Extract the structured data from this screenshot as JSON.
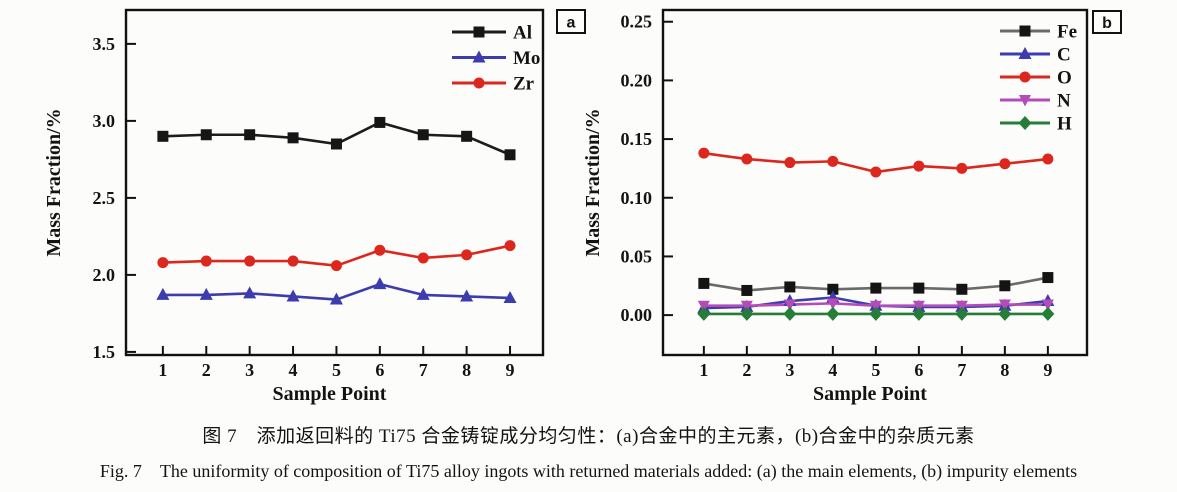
{
  "figure": {
    "caption_zh": "图 7　添加返回料的 Ti75 合金铸锭成分均匀性：(a)合金中的主元素，(b)合金中的杂质元素",
    "caption_en": "Fig. 7　The uniformity of composition of Ti75 alloy ingots with returned materials added: (a) the main elements, (b) impurity elements"
  },
  "chart_data": [
    {
      "type": "line",
      "panel_label": "a",
      "xlabel": "Sample Point",
      "ylabel": "Mass Fraction/%",
      "x": [
        1,
        2,
        3,
        4,
        5,
        6,
        7,
        8,
        9
      ],
      "xtick_labels": [
        "1",
        "2",
        "3",
        "4",
        "5",
        "6",
        "7",
        "8",
        "9"
      ],
      "ylim": [
        1.48,
        3.72
      ],
      "yticks": [
        1.5,
        2.0,
        2.5,
        3.0,
        3.5
      ],
      "ytick_labels": [
        "1.5",
        "2.0",
        "2.5",
        "3.0",
        "3.5"
      ],
      "grid": false,
      "legend_position": "top-right-inside",
      "series": [
        {
          "name": "Al",
          "marker": "square",
          "color": "#161616",
          "line_color": "#1c1c1c",
          "values": [
            2.9,
            2.91,
            2.91,
            2.89,
            2.85,
            2.99,
            2.91,
            2.9,
            2.78
          ]
        },
        {
          "name": "Mo",
          "marker": "triangle-up",
          "color": "#3c3cae",
          "line_color": "#3c3cae",
          "values": [
            1.87,
            1.87,
            1.88,
            1.86,
            1.84,
            1.94,
            1.87,
            1.86,
            1.85
          ]
        },
        {
          "name": "Zr",
          "marker": "circle",
          "color": "#dc271e",
          "line_color": "#dc271e",
          "values": [
            2.08,
            2.09,
            2.09,
            2.09,
            2.06,
            2.16,
            2.11,
            2.13,
            2.19
          ]
        }
      ]
    },
    {
      "type": "line",
      "panel_label": "b",
      "xlabel": "Sample Point",
      "ylabel": "Mass Fraction/%",
      "x": [
        1,
        2,
        3,
        4,
        5,
        6,
        7,
        8,
        9
      ],
      "xtick_labels": [
        "1",
        "2",
        "3",
        "4",
        "5",
        "6",
        "7",
        "8",
        "9"
      ],
      "ylim": [
        -0.034,
        0.26
      ],
      "yticks": [
        0.0,
        0.05,
        0.1,
        0.15,
        0.2,
        0.25
      ],
      "ytick_labels": [
        "0.00",
        "0.05",
        "0.10",
        "0.15",
        "0.20",
        "0.25"
      ],
      "grid": false,
      "legend_position": "top-right-inside",
      "series": [
        {
          "name": "Fe",
          "marker": "square",
          "color": "#141414",
          "line_color": "#6a6a6a",
          "values": [
            0.027,
            0.021,
            0.024,
            0.022,
            0.023,
            0.023,
            0.022,
            0.025,
            0.032
          ]
        },
        {
          "name": "C",
          "marker": "triangle-up",
          "color": "#3c3cae",
          "line_color": "#3c3cae",
          "values": [
            0.006,
            0.007,
            0.012,
            0.015,
            0.008,
            0.007,
            0.007,
            0.008,
            0.012
          ]
        },
        {
          "name": "O",
          "marker": "circle",
          "color": "#dc271e",
          "line_color": "#dc271e",
          "values": [
            0.138,
            0.133,
            0.13,
            0.131,
            0.122,
            0.127,
            0.125,
            0.129,
            0.133
          ]
        },
        {
          "name": "N",
          "marker": "triangle-down",
          "color": "#b44cb8",
          "line_color": "#b44cb8",
          "values": [
            0.008,
            0.008,
            0.009,
            0.01,
            0.008,
            0.008,
            0.008,
            0.009,
            0.009
          ]
        },
        {
          "name": "H",
          "marker": "diamond",
          "color": "#267d38",
          "line_color": "#267d38",
          "values": [
            0.001,
            0.001,
            0.001,
            0.001,
            0.001,
            0.001,
            0.001,
            0.001,
            0.001
          ]
        }
      ]
    }
  ]
}
